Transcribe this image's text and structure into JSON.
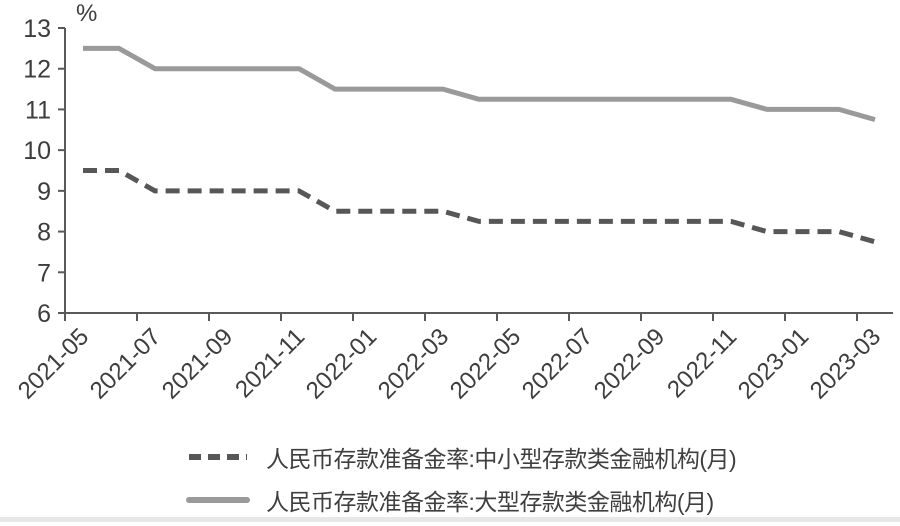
{
  "chart_data": {
    "type": "line",
    "title": "",
    "ylabel": "%",
    "xlabel": "",
    "ylim": [
      6,
      13
    ],
    "y_ticks": [
      6,
      7,
      8,
      9,
      10,
      11,
      12,
      13
    ],
    "grid": false,
    "legend_position": "bottom",
    "x": [
      "2021-05",
      "2021-06",
      "2021-07",
      "2021-08",
      "2021-09",
      "2021-10",
      "2021-11",
      "2021-12",
      "2022-01",
      "2022-02",
      "2022-03",
      "2022-04",
      "2022-05",
      "2022-06",
      "2022-07",
      "2022-08",
      "2022-09",
      "2022-10",
      "2022-11",
      "2022-12",
      "2023-01",
      "2023-02",
      "2023-03"
    ],
    "x_tick_labels": [
      "2021-05",
      "2021-07",
      "2021-09",
      "2021-11",
      "2022-01",
      "2022-03",
      "2022-05",
      "2022-07",
      "2022-09",
      "2022-11",
      "2023-01",
      "2023-03"
    ],
    "series": [
      {
        "name": "人民币存款准备金率:中小型存款类金融机构(月)",
        "line_style": "dashed",
        "color": "#575757",
        "values": [
          9.5,
          9.5,
          9.0,
          9.0,
          9.0,
          9.0,
          9.0,
          8.5,
          8.5,
          8.5,
          8.5,
          8.25,
          8.25,
          8.25,
          8.25,
          8.25,
          8.25,
          8.25,
          8.25,
          8.0,
          8.0,
          8.0,
          7.75
        ]
      },
      {
        "name": "人民币存款准备金率:大型存款类金融机构(月)",
        "line_style": "solid",
        "color": "#9a9a9a",
        "values": [
          12.5,
          12.5,
          12.0,
          12.0,
          12.0,
          12.0,
          12.0,
          11.5,
          11.5,
          11.5,
          11.5,
          11.25,
          11.25,
          11.25,
          11.25,
          11.25,
          11.25,
          11.25,
          11.25,
          11.0,
          11.0,
          11.0,
          10.75
        ]
      }
    ],
    "axis_color": "#595959",
    "tick_text_color": "#3d3d3d"
  }
}
